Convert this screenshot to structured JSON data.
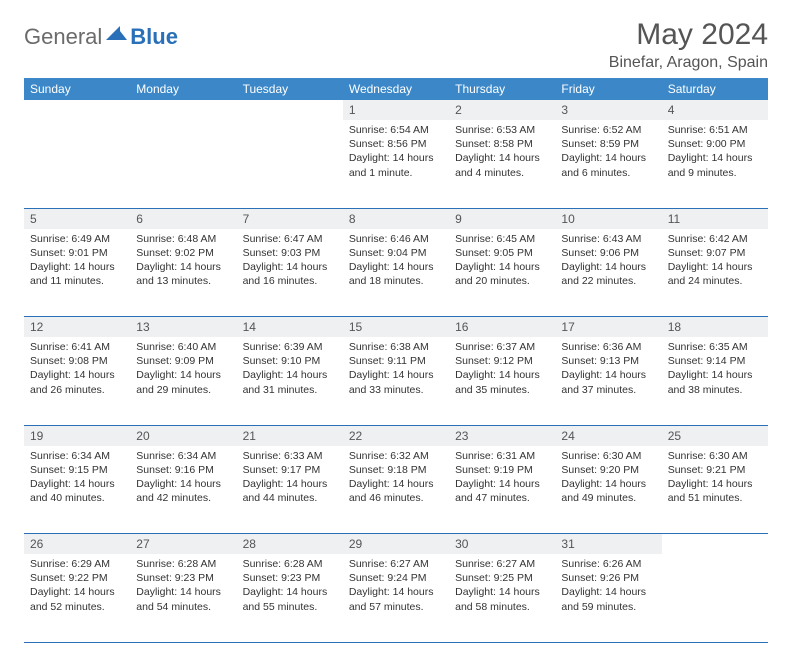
{
  "logo": {
    "general": "General",
    "blue": "Blue"
  },
  "title": "May 2024",
  "location": "Binefar, Aragon, Spain",
  "colors": {
    "header_bg": "#3b87c8",
    "header_text": "#ffffff",
    "daynum_bg": "#eef0f2",
    "rule": "#2a70b8",
    "title_color": "#555555",
    "logo_gray": "#6b6b6b",
    "logo_blue": "#2a70b8"
  },
  "weekdays": [
    "Sunday",
    "Monday",
    "Tuesday",
    "Wednesday",
    "Thursday",
    "Friday",
    "Saturday"
  ],
  "weeks": [
    [
      null,
      null,
      null,
      {
        "d": "1",
        "sr": "6:54 AM",
        "ss": "8:56 PM",
        "dl": "14 hours and 1 minute."
      },
      {
        "d": "2",
        "sr": "6:53 AM",
        "ss": "8:58 PM",
        "dl": "14 hours and 4 minutes."
      },
      {
        "d": "3",
        "sr": "6:52 AM",
        "ss": "8:59 PM",
        "dl": "14 hours and 6 minutes."
      },
      {
        "d": "4",
        "sr": "6:51 AM",
        "ss": "9:00 PM",
        "dl": "14 hours and 9 minutes."
      }
    ],
    [
      {
        "d": "5",
        "sr": "6:49 AM",
        "ss": "9:01 PM",
        "dl": "14 hours and 11 minutes."
      },
      {
        "d": "6",
        "sr": "6:48 AM",
        "ss": "9:02 PM",
        "dl": "14 hours and 13 minutes."
      },
      {
        "d": "7",
        "sr": "6:47 AM",
        "ss": "9:03 PM",
        "dl": "14 hours and 16 minutes."
      },
      {
        "d": "8",
        "sr": "6:46 AM",
        "ss": "9:04 PM",
        "dl": "14 hours and 18 minutes."
      },
      {
        "d": "9",
        "sr": "6:45 AM",
        "ss": "9:05 PM",
        "dl": "14 hours and 20 minutes."
      },
      {
        "d": "10",
        "sr": "6:43 AM",
        "ss": "9:06 PM",
        "dl": "14 hours and 22 minutes."
      },
      {
        "d": "11",
        "sr": "6:42 AM",
        "ss": "9:07 PM",
        "dl": "14 hours and 24 minutes."
      }
    ],
    [
      {
        "d": "12",
        "sr": "6:41 AM",
        "ss": "9:08 PM",
        "dl": "14 hours and 26 minutes."
      },
      {
        "d": "13",
        "sr": "6:40 AM",
        "ss": "9:09 PM",
        "dl": "14 hours and 29 minutes."
      },
      {
        "d": "14",
        "sr": "6:39 AM",
        "ss": "9:10 PM",
        "dl": "14 hours and 31 minutes."
      },
      {
        "d": "15",
        "sr": "6:38 AM",
        "ss": "9:11 PM",
        "dl": "14 hours and 33 minutes."
      },
      {
        "d": "16",
        "sr": "6:37 AM",
        "ss": "9:12 PM",
        "dl": "14 hours and 35 minutes."
      },
      {
        "d": "17",
        "sr": "6:36 AM",
        "ss": "9:13 PM",
        "dl": "14 hours and 37 minutes."
      },
      {
        "d": "18",
        "sr": "6:35 AM",
        "ss": "9:14 PM",
        "dl": "14 hours and 38 minutes."
      }
    ],
    [
      {
        "d": "19",
        "sr": "6:34 AM",
        "ss": "9:15 PM",
        "dl": "14 hours and 40 minutes."
      },
      {
        "d": "20",
        "sr": "6:34 AM",
        "ss": "9:16 PM",
        "dl": "14 hours and 42 minutes."
      },
      {
        "d": "21",
        "sr": "6:33 AM",
        "ss": "9:17 PM",
        "dl": "14 hours and 44 minutes."
      },
      {
        "d": "22",
        "sr": "6:32 AM",
        "ss": "9:18 PM",
        "dl": "14 hours and 46 minutes."
      },
      {
        "d": "23",
        "sr": "6:31 AM",
        "ss": "9:19 PM",
        "dl": "14 hours and 47 minutes."
      },
      {
        "d": "24",
        "sr": "6:30 AM",
        "ss": "9:20 PM",
        "dl": "14 hours and 49 minutes."
      },
      {
        "d": "25",
        "sr": "6:30 AM",
        "ss": "9:21 PM",
        "dl": "14 hours and 51 minutes."
      }
    ],
    [
      {
        "d": "26",
        "sr": "6:29 AM",
        "ss": "9:22 PM",
        "dl": "14 hours and 52 minutes."
      },
      {
        "d": "27",
        "sr": "6:28 AM",
        "ss": "9:23 PM",
        "dl": "14 hours and 54 minutes."
      },
      {
        "d": "28",
        "sr": "6:28 AM",
        "ss": "9:23 PM",
        "dl": "14 hours and 55 minutes."
      },
      {
        "d": "29",
        "sr": "6:27 AM",
        "ss": "9:24 PM",
        "dl": "14 hours and 57 minutes."
      },
      {
        "d": "30",
        "sr": "6:27 AM",
        "ss": "9:25 PM",
        "dl": "14 hours and 58 minutes."
      },
      {
        "d": "31",
        "sr": "6:26 AM",
        "ss": "9:26 PM",
        "dl": "14 hours and 59 minutes."
      },
      null
    ]
  ],
  "labels": {
    "sunrise": "Sunrise:",
    "sunset": "Sunset:",
    "daylight": "Daylight:"
  }
}
